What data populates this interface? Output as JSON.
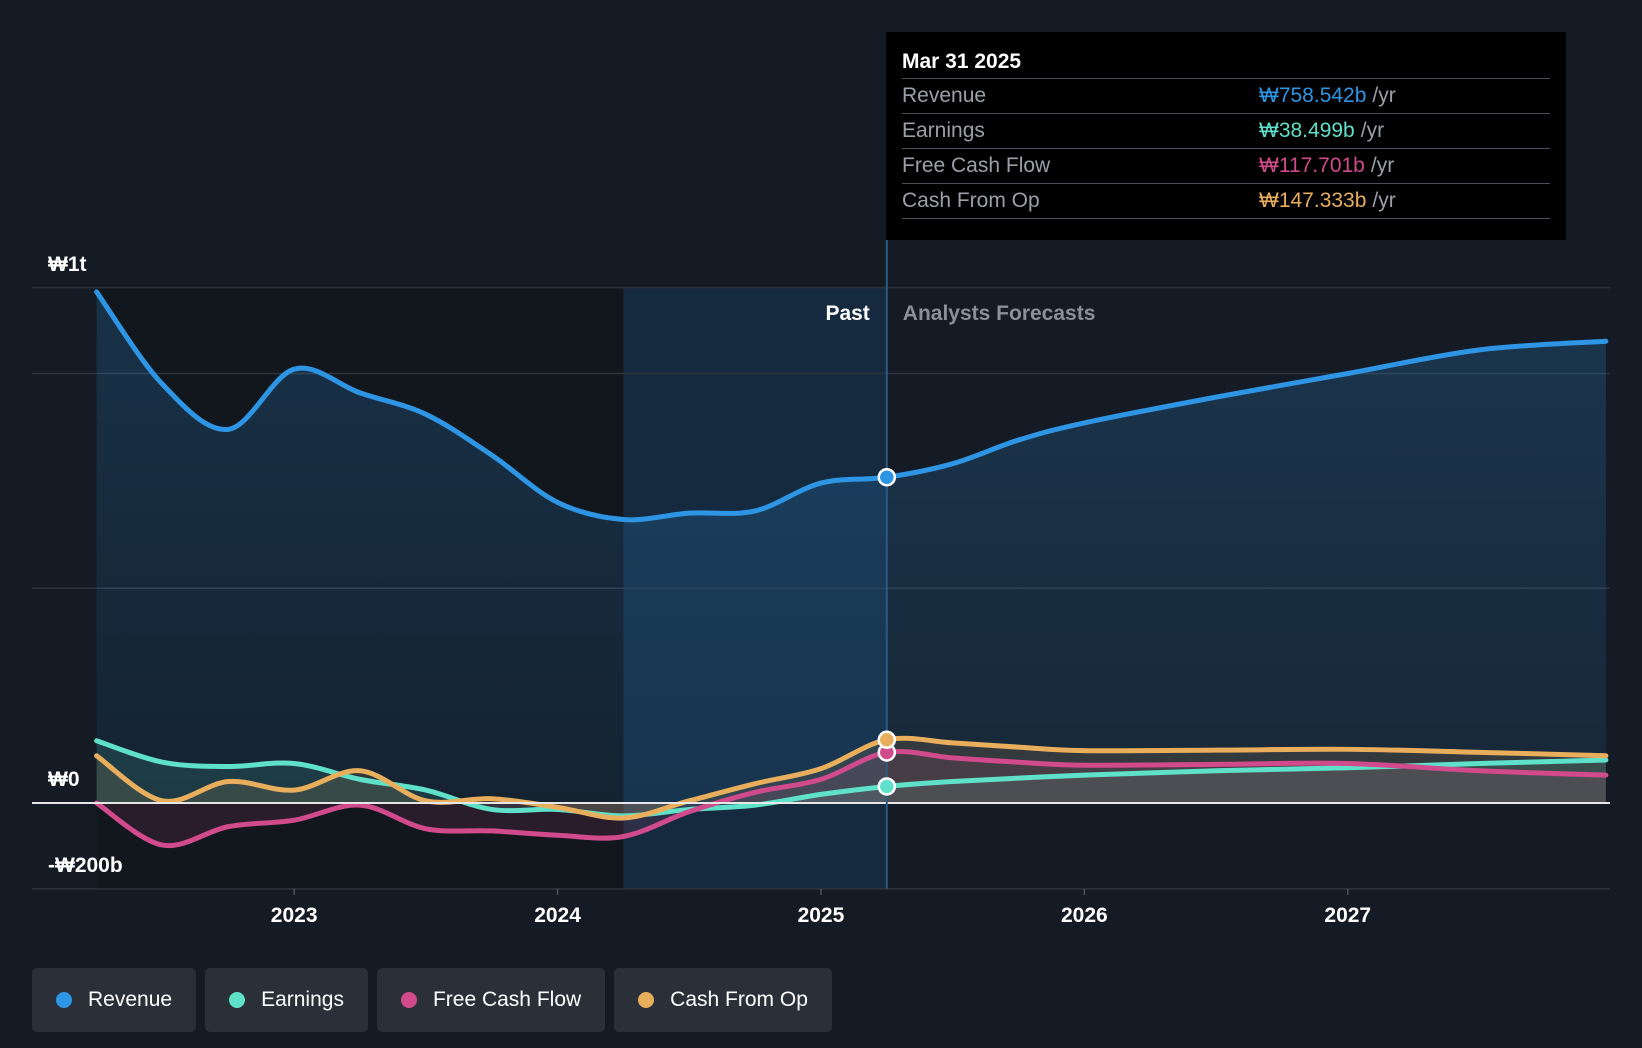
{
  "chart_data": {
    "type": "area",
    "currency_axis": {
      "top_label": "₩1t",
      "zero_label": "₩0",
      "bottom_label": "-₩200b"
    },
    "ylim": [
      -200,
      1200
    ],
    "y_ticks": [
      1200,
      1000,
      500,
      0,
      -200
    ],
    "x_ticks": [
      {
        "label": "2023",
        "value": 2023.0
      },
      {
        "label": "2024",
        "value": 2024.0
      },
      {
        "label": "2025",
        "value": 2025.0
      },
      {
        "label": "2026",
        "value": 2026.0
      },
      {
        "label": "2027",
        "value": 2027.0
      }
    ],
    "xlim": [
      2022.0,
      2027.98
    ],
    "past_label": "Past",
    "forecast_label": "Analysts Forecasts",
    "divider_x": 2025.25,
    "highlight_start_x": 2024.25,
    "series": [
      {
        "name": "Revenue",
        "color": "#2d95e3",
        "points": [
          [
            2022.25,
            1190
          ],
          [
            2022.5,
            975
          ],
          [
            2022.75,
            870
          ],
          [
            2023.0,
            1010
          ],
          [
            2023.25,
            955
          ],
          [
            2023.5,
            905
          ],
          [
            2023.75,
            810
          ],
          [
            2024.0,
            700
          ],
          [
            2024.25,
            660
          ],
          [
            2024.5,
            675
          ],
          [
            2024.75,
            680
          ],
          [
            2025.0,
            745
          ],
          [
            2025.25,
            758.5
          ],
          [
            2025.5,
            790
          ],
          [
            2025.75,
            845
          ],
          [
            2026.0,
            885
          ],
          [
            2026.5,
            945
          ],
          [
            2027.0,
            1000
          ],
          [
            2027.5,
            1055
          ],
          [
            2027.98,
            1075
          ]
        ]
      },
      {
        "name": "Earnings",
        "color": "#5fe0c9",
        "points": [
          [
            2022.25,
            145
          ],
          [
            2022.5,
            95
          ],
          [
            2022.75,
            85
          ],
          [
            2023.0,
            92
          ],
          [
            2023.25,
            55
          ],
          [
            2023.5,
            30
          ],
          [
            2023.75,
            -15
          ],
          [
            2024.0,
            -15
          ],
          [
            2024.25,
            -30
          ],
          [
            2024.5,
            -15
          ],
          [
            2024.75,
            -5
          ],
          [
            2025.0,
            20
          ],
          [
            2025.25,
            38.5
          ],
          [
            2025.5,
            50
          ],
          [
            2026.0,
            65
          ],
          [
            2026.5,
            75
          ],
          [
            2027.0,
            82
          ],
          [
            2027.5,
            92
          ],
          [
            2027.98,
            100
          ]
        ]
      },
      {
        "name": "Free Cash Flow",
        "color": "#d14a8b",
        "points": [
          [
            2022.25,
            0
          ],
          [
            2022.5,
            -98
          ],
          [
            2022.75,
            -55
          ],
          [
            2023.0,
            -40
          ],
          [
            2023.25,
            -5
          ],
          [
            2023.5,
            -60
          ],
          [
            2023.75,
            -65
          ],
          [
            2024.0,
            -75
          ],
          [
            2024.25,
            -78
          ],
          [
            2024.5,
            -20
          ],
          [
            2024.75,
            25
          ],
          [
            2025.0,
            55
          ],
          [
            2025.25,
            117.7
          ],
          [
            2025.5,
            105
          ],
          [
            2025.75,
            95
          ],
          [
            2026.0,
            88
          ],
          [
            2026.5,
            90
          ],
          [
            2027.0,
            92
          ],
          [
            2027.5,
            75
          ],
          [
            2027.98,
            65
          ]
        ]
      },
      {
        "name": "Cash From Op",
        "color": "#e8ae5c",
        "points": [
          [
            2022.25,
            110
          ],
          [
            2022.5,
            5
          ],
          [
            2022.75,
            50
          ],
          [
            2023.0,
            30
          ],
          [
            2023.25,
            75
          ],
          [
            2023.5,
            5
          ],
          [
            2023.75,
            10
          ],
          [
            2024.0,
            -10
          ],
          [
            2024.25,
            -35
          ],
          [
            2024.5,
            5
          ],
          [
            2024.75,
            45
          ],
          [
            2025.0,
            80
          ],
          [
            2025.25,
            147.3
          ],
          [
            2025.5,
            140
          ],
          [
            2025.75,
            130
          ],
          [
            2026.0,
            122
          ],
          [
            2026.5,
            123
          ],
          [
            2027.0,
            125
          ],
          [
            2027.5,
            118
          ],
          [
            2027.98,
            110
          ]
        ]
      }
    ]
  },
  "tooltip": {
    "date": "Mar 31 2025",
    "rows": [
      {
        "label": "Revenue",
        "value": "₩758.542b",
        "unit": "/yr",
        "color": "#2d95e3"
      },
      {
        "label": "Earnings",
        "value": "₩38.499b",
        "unit": "/yr",
        "color": "#5fe0c9"
      },
      {
        "label": "Free Cash Flow",
        "value": "₩117.701b",
        "unit": "/yr",
        "color": "#d14a8b"
      },
      {
        "label": "Cash From Op",
        "value": "₩147.333b",
        "unit": "/yr",
        "color": "#e8ae5c"
      }
    ]
  },
  "legend": [
    {
      "label": "Revenue",
      "color": "#2d95e3"
    },
    {
      "label": "Earnings",
      "color": "#5fe0c9"
    },
    {
      "label": "Free Cash Flow",
      "color": "#d14a8b"
    },
    {
      "label": "Cash From Op",
      "color": "#e8ae5c"
    }
  ]
}
